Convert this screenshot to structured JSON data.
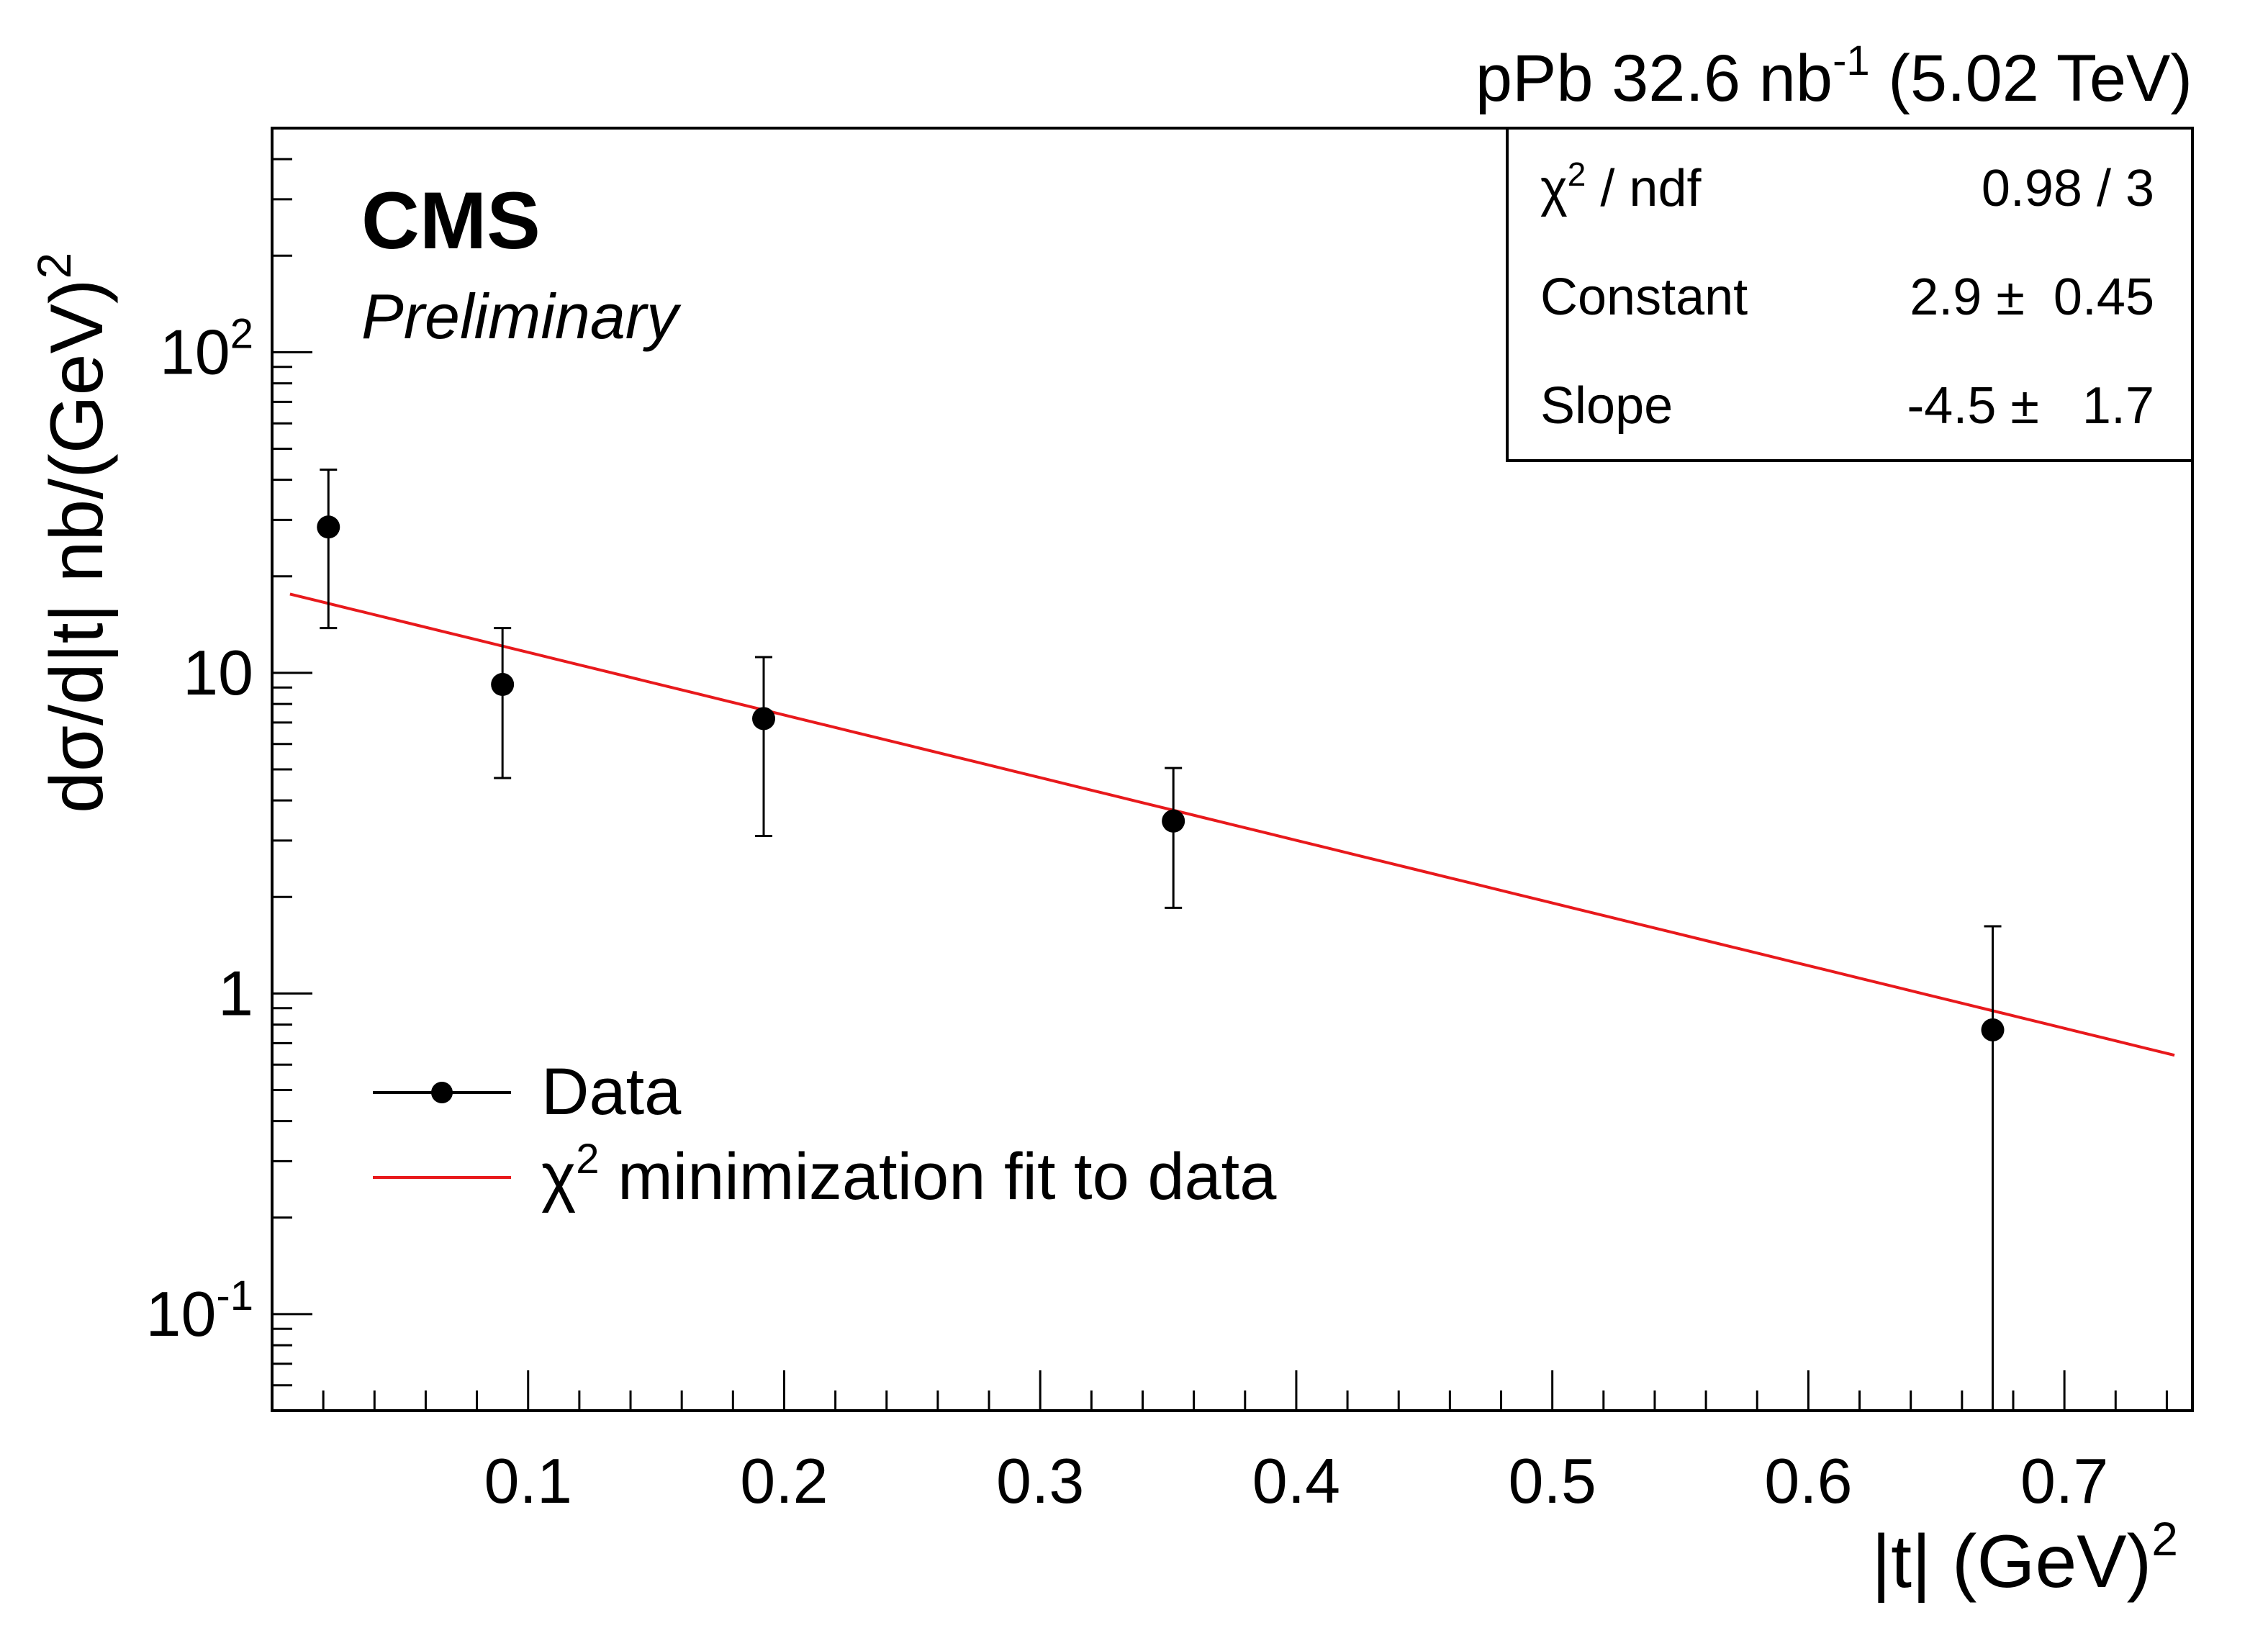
{
  "header": {
    "lumi_prefix": "pPb 32.6 nb",
    "lumi_sup": "-1",
    "lumi_suffix": " (5.02 TeV)",
    "experiment": "CMS",
    "status": "Preliminary"
  },
  "stats_box": {
    "chi2_label_sym": "χ",
    "chi2_label_sup": "2",
    "chi2_label_rest": " / ndf",
    "chi2_value": "0.98 / 3",
    "constant_label": "Constant",
    "constant_value": "2.9 ±  0.45",
    "slope_label": "Slope",
    "slope_value": "-4.5 ±   1.7"
  },
  "legend": {
    "data_label": "Data",
    "fit_label_sym": "χ",
    "fit_label_sup": "2",
    "fit_label_rest": " minimization fit to data"
  },
  "colors": {
    "data": "#000000",
    "fit": "#e8191c",
    "frame": "#000000"
  },
  "chart_data": {
    "type": "scatter",
    "title": "",
    "xlabel": "|t| (GeV)",
    "xlabel_sup": "2",
    "ylabel": "dσ/d|t| nb/(GeV)",
    "ylabel_sup": "2",
    "xlim": [
      0.0,
      0.75
    ],
    "ylim": [
      0.05,
      500
    ],
    "y_scale": "log",
    "x_ticks": [
      {
        "value": 0.1,
        "label": "0.1"
      },
      {
        "value": 0.2,
        "label": "0.2"
      },
      {
        "value": 0.3,
        "label": "0.3"
      },
      {
        "value": 0.4,
        "label": "0.4"
      },
      {
        "value": 0.5,
        "label": "0.5"
      },
      {
        "value": 0.6,
        "label": "0.6"
      },
      {
        "value": 0.7,
        "label": "0.7"
      }
    ],
    "y_ticks": [
      {
        "value": 0.1,
        "base": "10",
        "sup": "-1"
      },
      {
        "value": 1,
        "base": "1",
        "sup": ""
      },
      {
        "value": 10,
        "base": "10",
        "sup": ""
      },
      {
        "value": 100,
        "base": "10",
        "sup": "2"
      }
    ],
    "series": [
      {
        "name": "Data",
        "type": "points_with_errors",
        "points": [
          {
            "x": 0.022,
            "y": 28.5,
            "y_low": 13.8,
            "y_high": 43.0
          },
          {
            "x": 0.09,
            "y": 9.2,
            "y_low": 4.7,
            "y_high": 13.8
          },
          {
            "x": 0.192,
            "y": 7.2,
            "y_low": 3.1,
            "y_high": 11.2
          },
          {
            "x": 0.352,
            "y": 3.45,
            "y_low": 1.85,
            "y_high": 5.05
          },
          {
            "x": 0.672,
            "y": 0.77,
            "y_low": 0.05,
            "y_high": 1.62
          }
        ]
      },
      {
        "name": "χ2 minimization fit to data",
        "type": "exponential_fit",
        "constant": 2.9,
        "slope": -4.5,
        "x_range": [
          0.007,
          0.743
        ]
      }
    ],
    "legend_position": "bottom-left",
    "grid": false
  }
}
